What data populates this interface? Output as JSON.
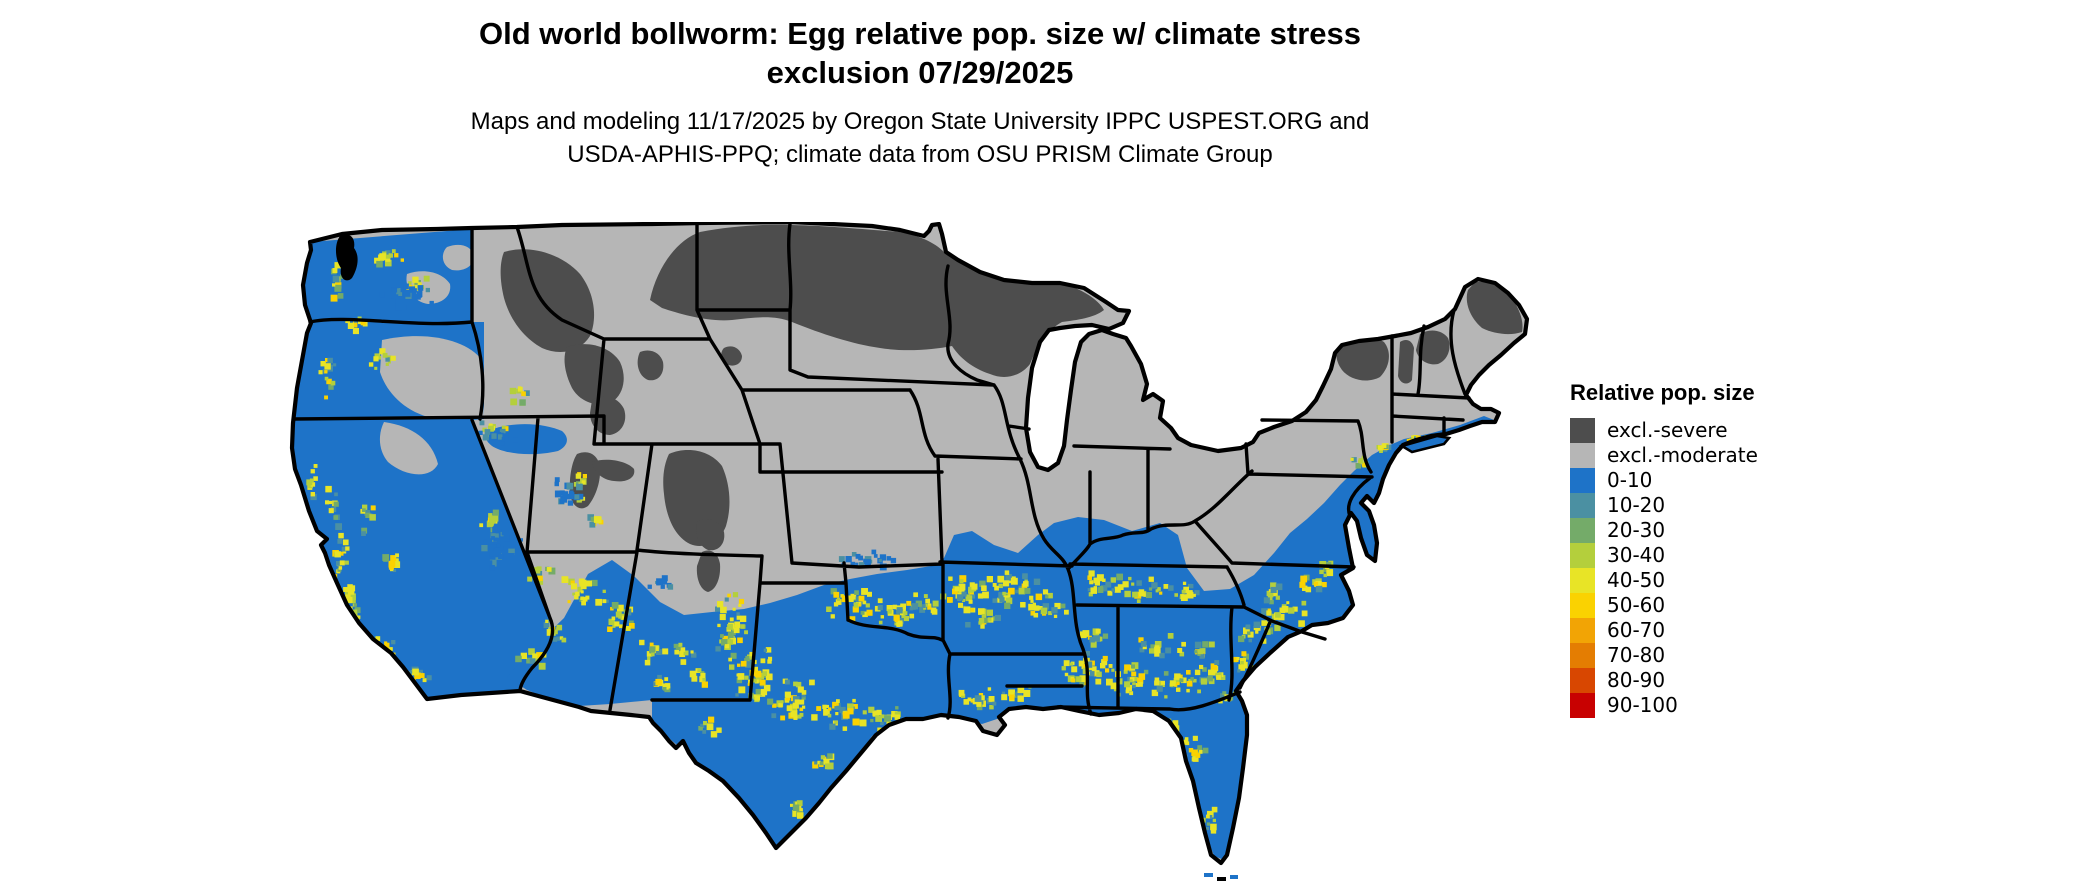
{
  "header": {
    "title_line1": "Old world bollworm: Egg relative pop. size w/ climate stress",
    "title_line2": "exclusion 07/29/2025",
    "subtitle_line1": "Maps and modeling 11/17/2025 by Oregon State University IPPC USPEST.ORG and",
    "subtitle_line2": "USDA-APHIS-PPQ; climate data from OSU PRISM Climate Group"
  },
  "legend": {
    "title": "Relative pop. size",
    "entries": [
      {
        "key": "severe",
        "label": "excl.-severe",
        "color": "#4d4d4d"
      },
      {
        "key": "moderate",
        "label": "excl.-moderate",
        "color": "#b6b6b6"
      },
      {
        "key": "v0",
        "label": "0-10",
        "color": "#1e73c8"
      },
      {
        "key": "v10",
        "label": "10-20",
        "color": "#4b90a2"
      },
      {
        "key": "v20",
        "label": "20-30",
        "color": "#74ab69"
      },
      {
        "key": "v30",
        "label": "30-40",
        "color": "#b4cf3c"
      },
      {
        "key": "v40",
        "label": "40-50",
        "color": "#e8e426"
      },
      {
        "key": "v50",
        "label": "50-60",
        "color": "#fad201"
      },
      {
        "key": "v60",
        "label": "60-70",
        "color": "#f2a405"
      },
      {
        "key": "v70",
        "label": "70-80",
        "color": "#e47d02"
      },
      {
        "key": "v80",
        "label": "80-90",
        "color": "#d84701"
      },
      {
        "key": "v90",
        "label": "90-100",
        "color": "#c80101"
      }
    ]
  },
  "map": {
    "region": "Contiguous United States",
    "base_category": "excl.-moderate",
    "outline_color": "#000000",
    "state_border_color": "#000000",
    "water_color": "#ffffff",
    "distribution_notes": "Dark gray (excl.-severe) across ND, MN, WI, upper MI, northern Maine, Adirondacks and Rocky Mountain high elevations; light gray (excl.-moderate) over the central/northern interior; blue (0-10) across the South, West Coast and coastal mid-Atlantic; yellow-green speckled band (10-60) through central Texas, the Gulf South, Tennessee, the Carolinas, Florida and western mountain foothills."
  }
}
